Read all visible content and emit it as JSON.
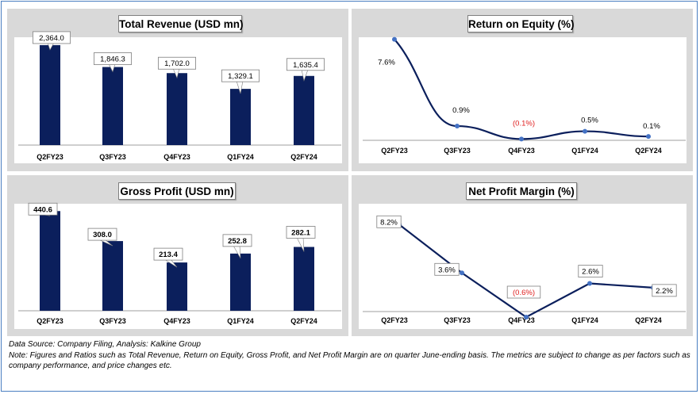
{
  "colors": {
    "bar": "#0b1f5c",
    "line": "#0b1f5c",
    "marker": "#4472c4",
    "negative": "#e02020",
    "panel_bg": "#d9d9d9"
  },
  "chart_data": [
    {
      "id": "total_revenue",
      "type": "bar",
      "title": "Total Revenue (USD mn)",
      "categories": [
        "Q2FY23",
        "Q3FY23",
        "Q4FY23",
        "Q1FY24",
        "Q2FY24"
      ],
      "values": [
        2364.0,
        1846.3,
        1702.0,
        1329.1,
        1635.4
      ],
      "labels": [
        "2,364.0",
        "1,846.3",
        "1,702.0",
        "1,329.1",
        "1,635.4"
      ],
      "ylim": [
        0,
        2400
      ]
    },
    {
      "id": "return_on_equity",
      "type": "line",
      "title": "Return on Equity (%)",
      "categories": [
        "Q2FY23",
        "Q3FY23",
        "Q4FY23",
        "Q1FY24",
        "Q2FY24"
      ],
      "values": [
        7.6,
        0.9,
        -0.1,
        0.5,
        0.1
      ],
      "labels": [
        "7.6%",
        "0.9%",
        "(0.1%)",
        "0.5%",
        "0.1%"
      ],
      "ylim": [
        -0.2,
        7.7
      ]
    },
    {
      "id": "gross_profit",
      "type": "bar",
      "title": "Gross Profit (USD mn)",
      "categories": [
        "Q2FY23",
        "Q3FY23",
        "Q4FY23",
        "Q1FY24",
        "Q2FY24"
      ],
      "values": [
        440.6,
        308.0,
        213.4,
        252.8,
        282.1
      ],
      "labels": [
        "440.6",
        "308.0",
        "213.4",
        "252.8",
        "282.1"
      ],
      "ylim": [
        0,
        445
      ]
    },
    {
      "id": "net_profit_margin",
      "type": "line",
      "title": "Net Profit Margin (%)",
      "categories": [
        "Q2FY23",
        "Q3FY23",
        "Q4FY23",
        "Q1FY24",
        "Q2FY24"
      ],
      "values": [
        8.2,
        3.6,
        -0.6,
        2.6,
        2.2
      ],
      "labels": [
        "8.2%",
        "3.6%",
        "(0.6%)",
        "2.6%",
        "2.2%"
      ],
      "ylim": [
        -0.6,
        9.2
      ]
    }
  ],
  "footer": {
    "source": "Data Source: Company Filing, Analysis: Kalkine Group",
    "note": "Note: Figures and Ratios such as Total Revenue, Return on Equity, Gross Profit, and Net Profit Margin are on quarter June-ending basis. The metrics are subject to change as per factors such as company performance, and price changes etc."
  }
}
